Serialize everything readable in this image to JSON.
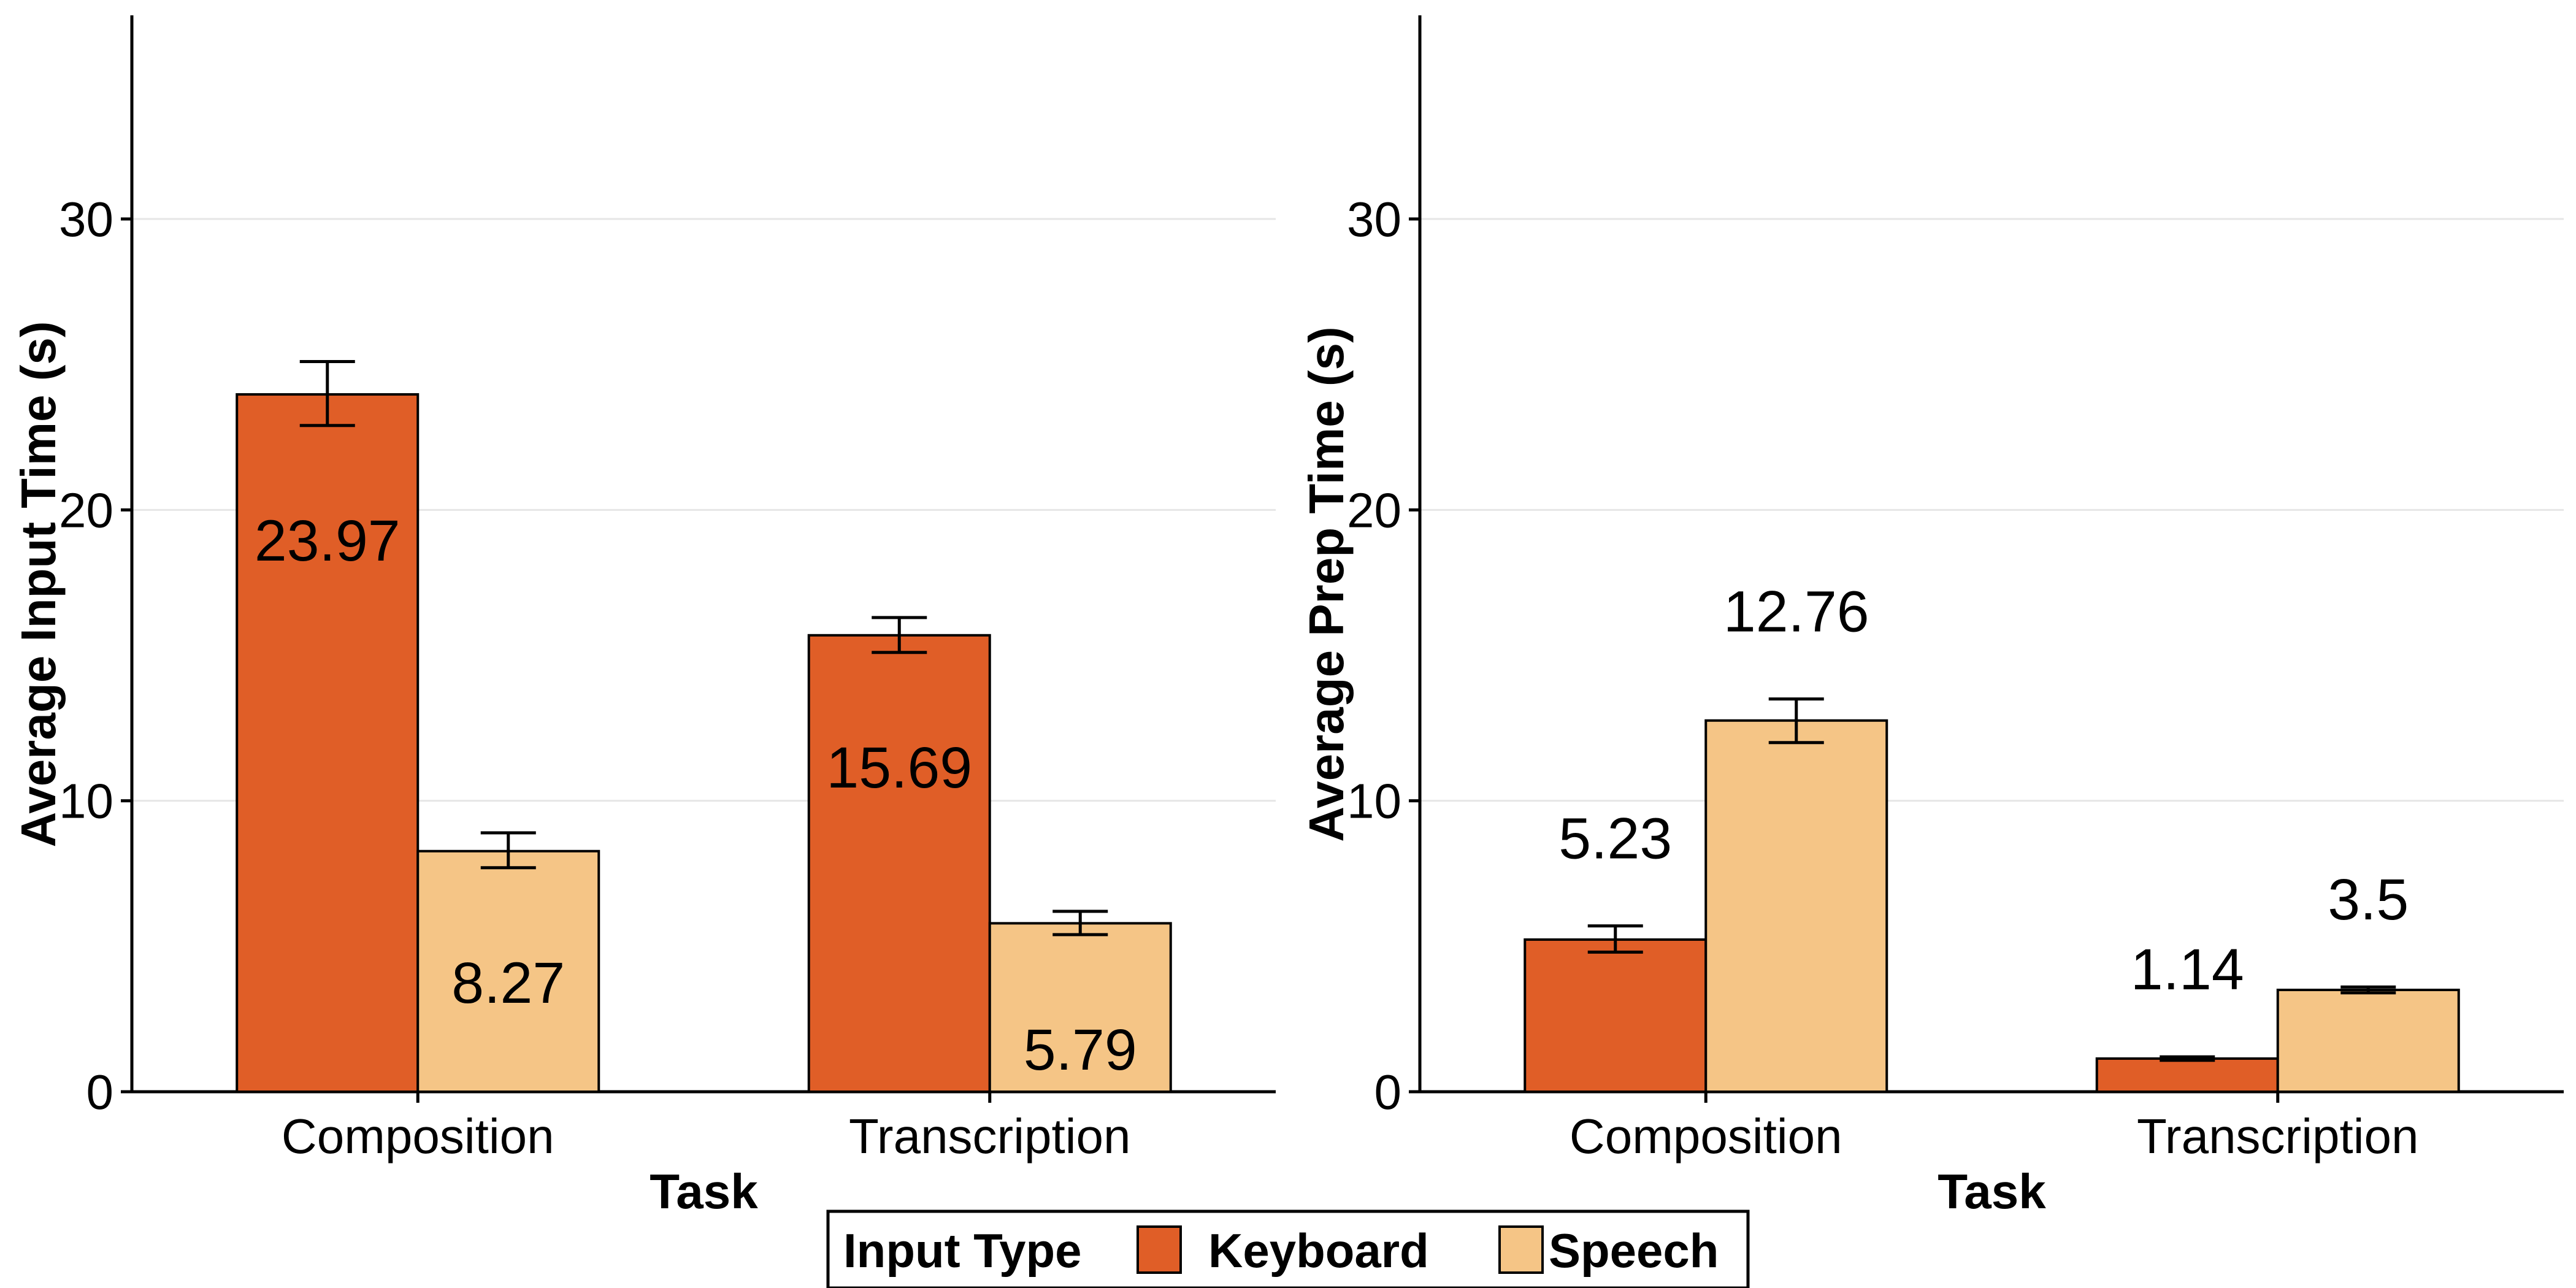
{
  "colors": {
    "keyboard": "#E05E27",
    "speech": "#F5C586",
    "gridline": "#E6E6E6",
    "axis": "#000000"
  },
  "legend": {
    "title": "Input Type",
    "items": [
      "Keyboard",
      "Speech"
    ],
    "placement": "bottom"
  },
  "chart_data": [
    {
      "type": "bar",
      "xlabel": "Task",
      "ylabel": "Average Input Time (s)",
      "categories": [
        "Composition",
        "Transcription"
      ],
      "ylim": [
        0,
        37
      ],
      "yticks": [
        0,
        10,
        20,
        30
      ],
      "grid": true,
      "series": [
        {
          "name": "Keyboard",
          "values": [
            23.97,
            15.69
          ],
          "err_low": [
            22.9,
            15.1
          ],
          "err_high": [
            25.1,
            16.3
          ],
          "labels": [
            "23.97",
            "15.69"
          ]
        },
        {
          "name": "Speech",
          "values": [
            8.27,
            5.79
          ],
          "err_low": [
            7.7,
            5.4
          ],
          "err_high": [
            8.9,
            6.2
          ],
          "labels": [
            "8.27",
            "5.79"
          ]
        }
      ]
    },
    {
      "type": "bar",
      "xlabel": "Task",
      "ylabel": "Average Prep Time (s)",
      "categories": [
        "Composition",
        "Transcription"
      ],
      "ylim": [
        0,
        37
      ],
      "yticks": [
        0,
        10,
        20,
        30
      ],
      "grid": true,
      "series": [
        {
          "name": "Keyboard",
          "values": [
            5.23,
            1.14
          ],
          "err_low": [
            4.8,
            1.08
          ],
          "err_high": [
            5.7,
            1.2
          ],
          "labels": [
            "5.23",
            "1.14"
          ]
        },
        {
          "name": "Speech",
          "values": [
            12.76,
            3.5
          ],
          "err_low": [
            12.0,
            3.4
          ],
          "err_high": [
            13.5,
            3.6
          ],
          "labels": [
            "12.76",
            "3.5"
          ]
        }
      ]
    }
  ]
}
